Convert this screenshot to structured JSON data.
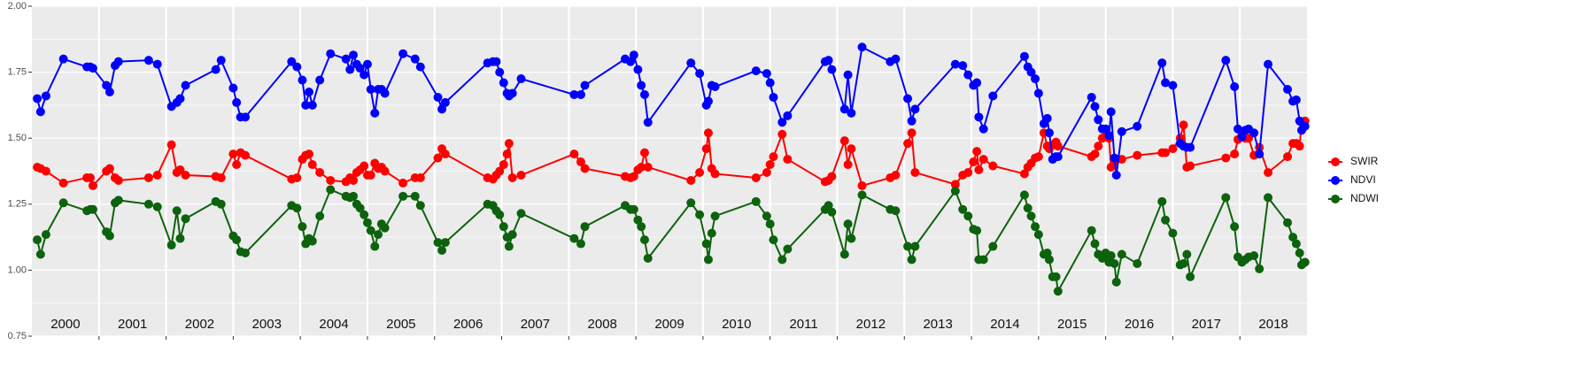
{
  "chart_data": {
    "type": "line",
    "x": [
      2000.08,
      2000.13,
      2000.21,
      2000.47,
      2000.82,
      2000.87,
      2000.91,
      2001.11,
      2001.16,
      2001.24,
      2001.29,
      2001.74,
      2001.87,
      2002.08,
      2002.16,
      2002.21,
      2002.29,
      2002.74,
      2002.82,
      2003.0,
      2003.05,
      2003.11,
      2003.18,
      2003.87,
      2003.95,
      2004.03,
      2004.08,
      2004.13,
      2004.18,
      2004.29,
      2004.45,
      2004.68,
      2004.74,
      2004.79,
      2004.84,
      2004.89,
      2004.95,
      2005.0,
      2005.05,
      2005.11,
      2005.16,
      2005.21,
      2005.26,
      2005.53,
      2005.71,
      2005.79,
      2006.05,
      2006.11,
      2006.16,
      2006.79,
      2006.87,
      2006.92,
      2006.97,
      2007.03,
      2007.08,
      2007.11,
      2007.16,
      2007.29,
      2008.08,
      2008.18,
      2008.24,
      2008.84,
      2008.92,
      2008.97,
      2009.03,
      2009.08,
      2009.13,
      2009.18,
      2009.82,
      2009.95,
      2010.05,
      2010.08,
      2010.13,
      2010.18,
      2010.79,
      2010.95,
      2011.0,
      2011.05,
      2011.18,
      2011.26,
      2011.82,
      2011.87,
      2011.92,
      2012.11,
      2012.16,
      2012.21,
      2012.37,
      2012.79,
      2012.87,
      2013.05,
      2013.11,
      2013.16,
      2013.76,
      2013.87,
      2013.95,
      2014.03,
      2014.08,
      2014.11,
      2014.18,
      2014.32,
      2014.79,
      2014.84,
      2014.89,
      2014.95,
      2015.0,
      2015.08,
      2015.13,
      2015.16,
      2015.21,
      2015.26,
      2015.29,
      2015.79,
      2015.84,
      2015.89,
      2015.95,
      2016.0,
      2016.05,
      2016.08,
      2016.13,
      2016.16,
      2016.24,
      2016.47,
      2016.84,
      2016.89,
      2017.0,
      2017.11,
      2017.16,
      2017.21,
      2017.26,
      2017.79,
      2017.92,
      2017.97,
      2018.03,
      2018.08,
      2018.13,
      2018.21,
      2018.29,
      2018.42,
      2018.71,
      2018.79,
      2018.84,
      2018.89,
      2018.92,
      2018.97
    ],
    "series": [
      {
        "name": "SWIR",
        "color": "#ff0000",
        "values": [
          1.39,
          1.385,
          1.375,
          1.33,
          1.35,
          1.35,
          1.32,
          1.375,
          1.385,
          1.35,
          1.34,
          1.35,
          1.36,
          1.475,
          1.37,
          1.38,
          1.36,
          1.355,
          1.35,
          1.44,
          1.4,
          1.445,
          1.435,
          1.345,
          1.35,
          1.42,
          1.435,
          1.44,
          1.4,
          1.37,
          1.34,
          1.335,
          1.35,
          1.34,
          1.37,
          1.38,
          1.395,
          1.36,
          1.36,
          1.405,
          1.385,
          1.39,
          1.375,
          1.33,
          1.35,
          1.35,
          1.425,
          1.46,
          1.44,
          1.35,
          1.345,
          1.36,
          1.375,
          1.4,
          1.44,
          1.48,
          1.35,
          1.36,
          1.44,
          1.41,
          1.385,
          1.355,
          1.35,
          1.355,
          1.38,
          1.39,
          1.445,
          1.39,
          1.34,
          1.37,
          1.46,
          1.52,
          1.385,
          1.365,
          1.35,
          1.37,
          1.4,
          1.43,
          1.515,
          1.42,
          1.335,
          1.34,
          1.355,
          1.49,
          1.4,
          1.46,
          1.32,
          1.35,
          1.36,
          1.48,
          1.52,
          1.37,
          1.325,
          1.36,
          1.37,
          1.41,
          1.45,
          1.38,
          1.42,
          1.395,
          1.365,
          1.39,
          1.405,
          1.425,
          1.43,
          1.52,
          1.47,
          1.46,
          1.475,
          1.485,
          1.47,
          1.43,
          1.44,
          1.47,
          1.5,
          1.505,
          1.5,
          1.39,
          1.41,
          1.42,
          1.42,
          1.435,
          1.445,
          1.445,
          1.46,
          1.5,
          1.55,
          1.39,
          1.395,
          1.425,
          1.44,
          1.495,
          1.515,
          1.5,
          1.5,
          1.435,
          1.465,
          1.37,
          1.43,
          1.48,
          1.48,
          1.47,
          1.56,
          1.565
        ]
      },
      {
        "name": "NDVI",
        "color": "#0000ff",
        "values": [
          1.65,
          1.6,
          1.66,
          1.8,
          1.77,
          1.77,
          1.765,
          1.7,
          1.675,
          1.775,
          1.79,
          1.795,
          1.78,
          1.62,
          1.635,
          1.65,
          1.7,
          1.76,
          1.795,
          1.69,
          1.635,
          1.58,
          1.58,
          1.79,
          1.77,
          1.72,
          1.625,
          1.675,
          1.625,
          1.72,
          1.82,
          1.8,
          1.76,
          1.815,
          1.78,
          1.765,
          1.74,
          1.78,
          1.685,
          1.595,
          1.685,
          1.685,
          1.67,
          1.82,
          1.8,
          1.77,
          1.655,
          1.61,
          1.635,
          1.785,
          1.79,
          1.79,
          1.75,
          1.71,
          1.67,
          1.66,
          1.67,
          1.725,
          1.665,
          1.665,
          1.7,
          1.8,
          1.79,
          1.815,
          1.76,
          1.7,
          1.665,
          1.56,
          1.785,
          1.745,
          1.625,
          1.64,
          1.7,
          1.695,
          1.755,
          1.745,
          1.71,
          1.655,
          1.56,
          1.585,
          1.79,
          1.795,
          1.76,
          1.61,
          1.74,
          1.595,
          1.845,
          1.79,
          1.8,
          1.65,
          1.565,
          1.61,
          1.78,
          1.775,
          1.74,
          1.7,
          1.71,
          1.58,
          1.535,
          1.66,
          1.81,
          1.77,
          1.75,
          1.725,
          1.67,
          1.555,
          1.575,
          1.52,
          1.42,
          1.43,
          1.43,
          1.655,
          1.62,
          1.57,
          1.535,
          1.535,
          1.51,
          1.6,
          1.425,
          1.36,
          1.525,
          1.545,
          1.785,
          1.71,
          1.7,
          1.48,
          1.47,
          1.465,
          1.465,
          1.795,
          1.695,
          1.535,
          1.505,
          1.53,
          1.535,
          1.52,
          1.44,
          1.78,
          1.685,
          1.64,
          1.645,
          1.565,
          1.53,
          1.545
        ]
      },
      {
        "name": "NDWI",
        "color": "#0d620d",
        "values": [
          1.115,
          1.06,
          1.135,
          1.255,
          1.225,
          1.23,
          1.23,
          1.145,
          1.13,
          1.255,
          1.265,
          1.25,
          1.24,
          1.095,
          1.225,
          1.12,
          1.195,
          1.26,
          1.25,
          1.13,
          1.115,
          1.07,
          1.065,
          1.245,
          1.235,
          1.165,
          1.1,
          1.12,
          1.11,
          1.205,
          1.305,
          1.28,
          1.275,
          1.28,
          1.25,
          1.235,
          1.21,
          1.18,
          1.15,
          1.09,
          1.135,
          1.175,
          1.16,
          1.28,
          1.28,
          1.245,
          1.105,
          1.075,
          1.105,
          1.25,
          1.245,
          1.225,
          1.21,
          1.165,
          1.125,
          1.09,
          1.135,
          1.215,
          1.12,
          1.1,
          1.165,
          1.245,
          1.23,
          1.23,
          1.19,
          1.165,
          1.115,
          1.045,
          1.255,
          1.21,
          1.1,
          1.04,
          1.14,
          1.205,
          1.26,
          1.205,
          1.175,
          1.115,
          1.04,
          1.08,
          1.23,
          1.245,
          1.22,
          1.06,
          1.175,
          1.12,
          1.285,
          1.23,
          1.225,
          1.09,
          1.04,
          1.09,
          1.3,
          1.23,
          1.205,
          1.155,
          1.15,
          1.04,
          1.04,
          1.09,
          1.285,
          1.235,
          1.205,
          1.165,
          1.135,
          1.06,
          1.065,
          1.04,
          0.975,
          0.975,
          0.92,
          1.15,
          1.1,
          1.06,
          1.045,
          1.065,
          1.03,
          1.055,
          1.025,
          0.955,
          1.06,
          1.025,
          1.26,
          1.19,
          1.14,
          1.02,
          1.025,
          1.06,
          0.975,
          1.275,
          1.165,
          1.05,
          1.03,
          1.04,
          1.05,
          1.055,
          1.005,
          1.275,
          1.18,
          1.125,
          1.1,
          1.065,
          1.02,
          1.03
        ]
      }
    ],
    "xlim": [
      2000.0,
      2019.0
    ],
    "xticks": [
      2001,
      2002,
      2003,
      2004,
      2005,
      2006,
      2007,
      2008,
      2009,
      2010,
      2011,
      2012,
      2013,
      2014,
      2015,
      2016,
      2017,
      2018
    ],
    "ylim": [
      0.75,
      2.0
    ],
    "yticks": [
      0.75,
      {
        "value": 1.0,
        "label": "1.00"
      },
      1.25,
      {
        "value": 1.5,
        "label": "1.50"
      },
      1.75,
      {
        "value": 2.0,
        "label": "2.00"
      }
    ],
    "grid": true,
    "minor_grid": true,
    "legend": "right",
    "annotations": [
      {
        "x": 2000.5,
        "text": "2000"
      },
      {
        "x": 2001.5,
        "text": "2001"
      },
      {
        "x": 2002.5,
        "text": "2002"
      },
      {
        "x": 2003.5,
        "text": "2003"
      },
      {
        "x": 2004.5,
        "text": "2004"
      },
      {
        "x": 2005.5,
        "text": "2005"
      },
      {
        "x": 2006.5,
        "text": "2006"
      },
      {
        "x": 2007.5,
        "text": "2007"
      },
      {
        "x": 2008.5,
        "text": "2008"
      },
      {
        "x": 2009.5,
        "text": "2009"
      },
      {
        "x": 2010.5,
        "text": "2010"
      },
      {
        "x": 2011.5,
        "text": "2011"
      },
      {
        "x": 2012.5,
        "text": "2012"
      },
      {
        "x": 2013.5,
        "text": "2013"
      },
      {
        "x": 2014.5,
        "text": "2014"
      },
      {
        "x": 2015.5,
        "text": "2015"
      },
      {
        "x": 2016.5,
        "text": "2016"
      },
      {
        "x": 2017.5,
        "text": "2017"
      },
      {
        "x": 2018.5,
        "text": "2018"
      }
    ]
  }
}
